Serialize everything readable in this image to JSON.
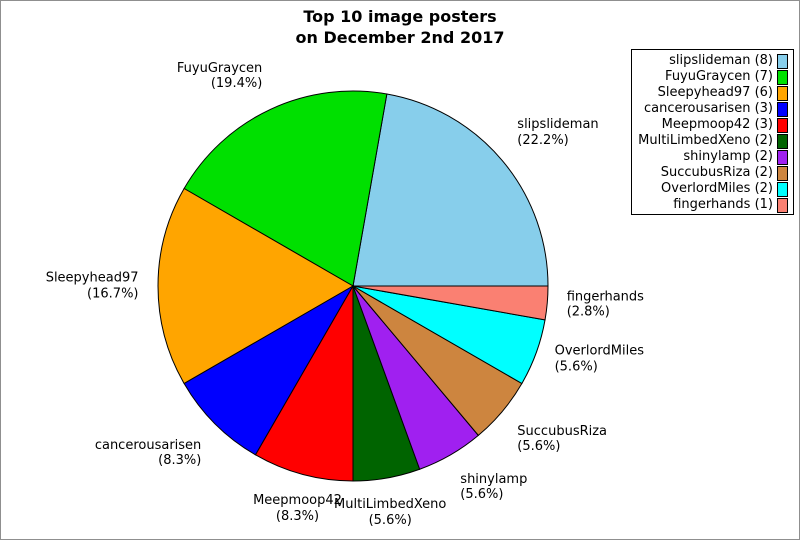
{
  "title": {
    "line1": "Top 10 image posters",
    "line2": "on December 2nd 2017"
  },
  "chart_data": {
    "type": "pie",
    "title": "Top 10 image posters on December 2nd 2017",
    "total_count": 36,
    "start_angle_deg": 0,
    "direction": "counterclockwise",
    "legend_position": "upper right",
    "slices": [
      {
        "name": "slipslideman",
        "count": 8,
        "percent": 22.2,
        "percent_label": "(22.2%)",
        "legend_label": "slipslideman (8)",
        "color": "#87CEEB"
      },
      {
        "name": "FuyuGraycen",
        "count": 7,
        "percent": 19.4,
        "percent_label": "(19.4%)",
        "legend_label": "FuyuGraycen (7)",
        "color": "#00E000"
      },
      {
        "name": "Sleepyhead97",
        "count": 6,
        "percent": 16.7,
        "percent_label": "(16.7%)",
        "legend_label": "Sleepyhead97 (6)",
        "color": "#FFA500"
      },
      {
        "name": "cancerousarisen",
        "count": 3,
        "percent": 8.3,
        "percent_label": "(8.3%)",
        "legend_label": "cancerousarisen (3)",
        "color": "#0000FF"
      },
      {
        "name": "Meepmoop42",
        "count": 3,
        "percent": 8.3,
        "percent_label": "(8.3%)",
        "legend_label": "Meepmoop42 (3)",
        "color": "#FF0000"
      },
      {
        "name": "MultiLimbedXeno",
        "count": 2,
        "percent": 5.6,
        "percent_label": "(5.6%)",
        "legend_label": "MultiLimbedXeno (2)",
        "color": "#006400"
      },
      {
        "name": "shinylamp",
        "count": 2,
        "percent": 5.6,
        "percent_label": "(5.6%)",
        "legend_label": "shinylamp (2)",
        "color": "#A020F0"
      },
      {
        "name": "SuccubusRiza",
        "count": 2,
        "percent": 5.6,
        "percent_label": "(5.6%)",
        "legend_label": "SuccubusRiza (2)",
        "color": "#CD853F"
      },
      {
        "name": "OverlordMiles",
        "count": 2,
        "percent": 5.6,
        "percent_label": "(5.6%)",
        "legend_label": "OverlordMiles (2)",
        "color": "#00FFFF"
      },
      {
        "name": "fingerhands",
        "count": 1,
        "percent": 2.8,
        "percent_label": "(2.8%)",
        "legend_label": "fingerhands (1)",
        "color": "#FA8072"
      }
    ]
  },
  "colors": {
    "background": "#FFFFFF",
    "figure_border": "#8F8F8F",
    "slice_outline": "#000000",
    "legend_border": "#000000",
    "text": "#000000"
  }
}
